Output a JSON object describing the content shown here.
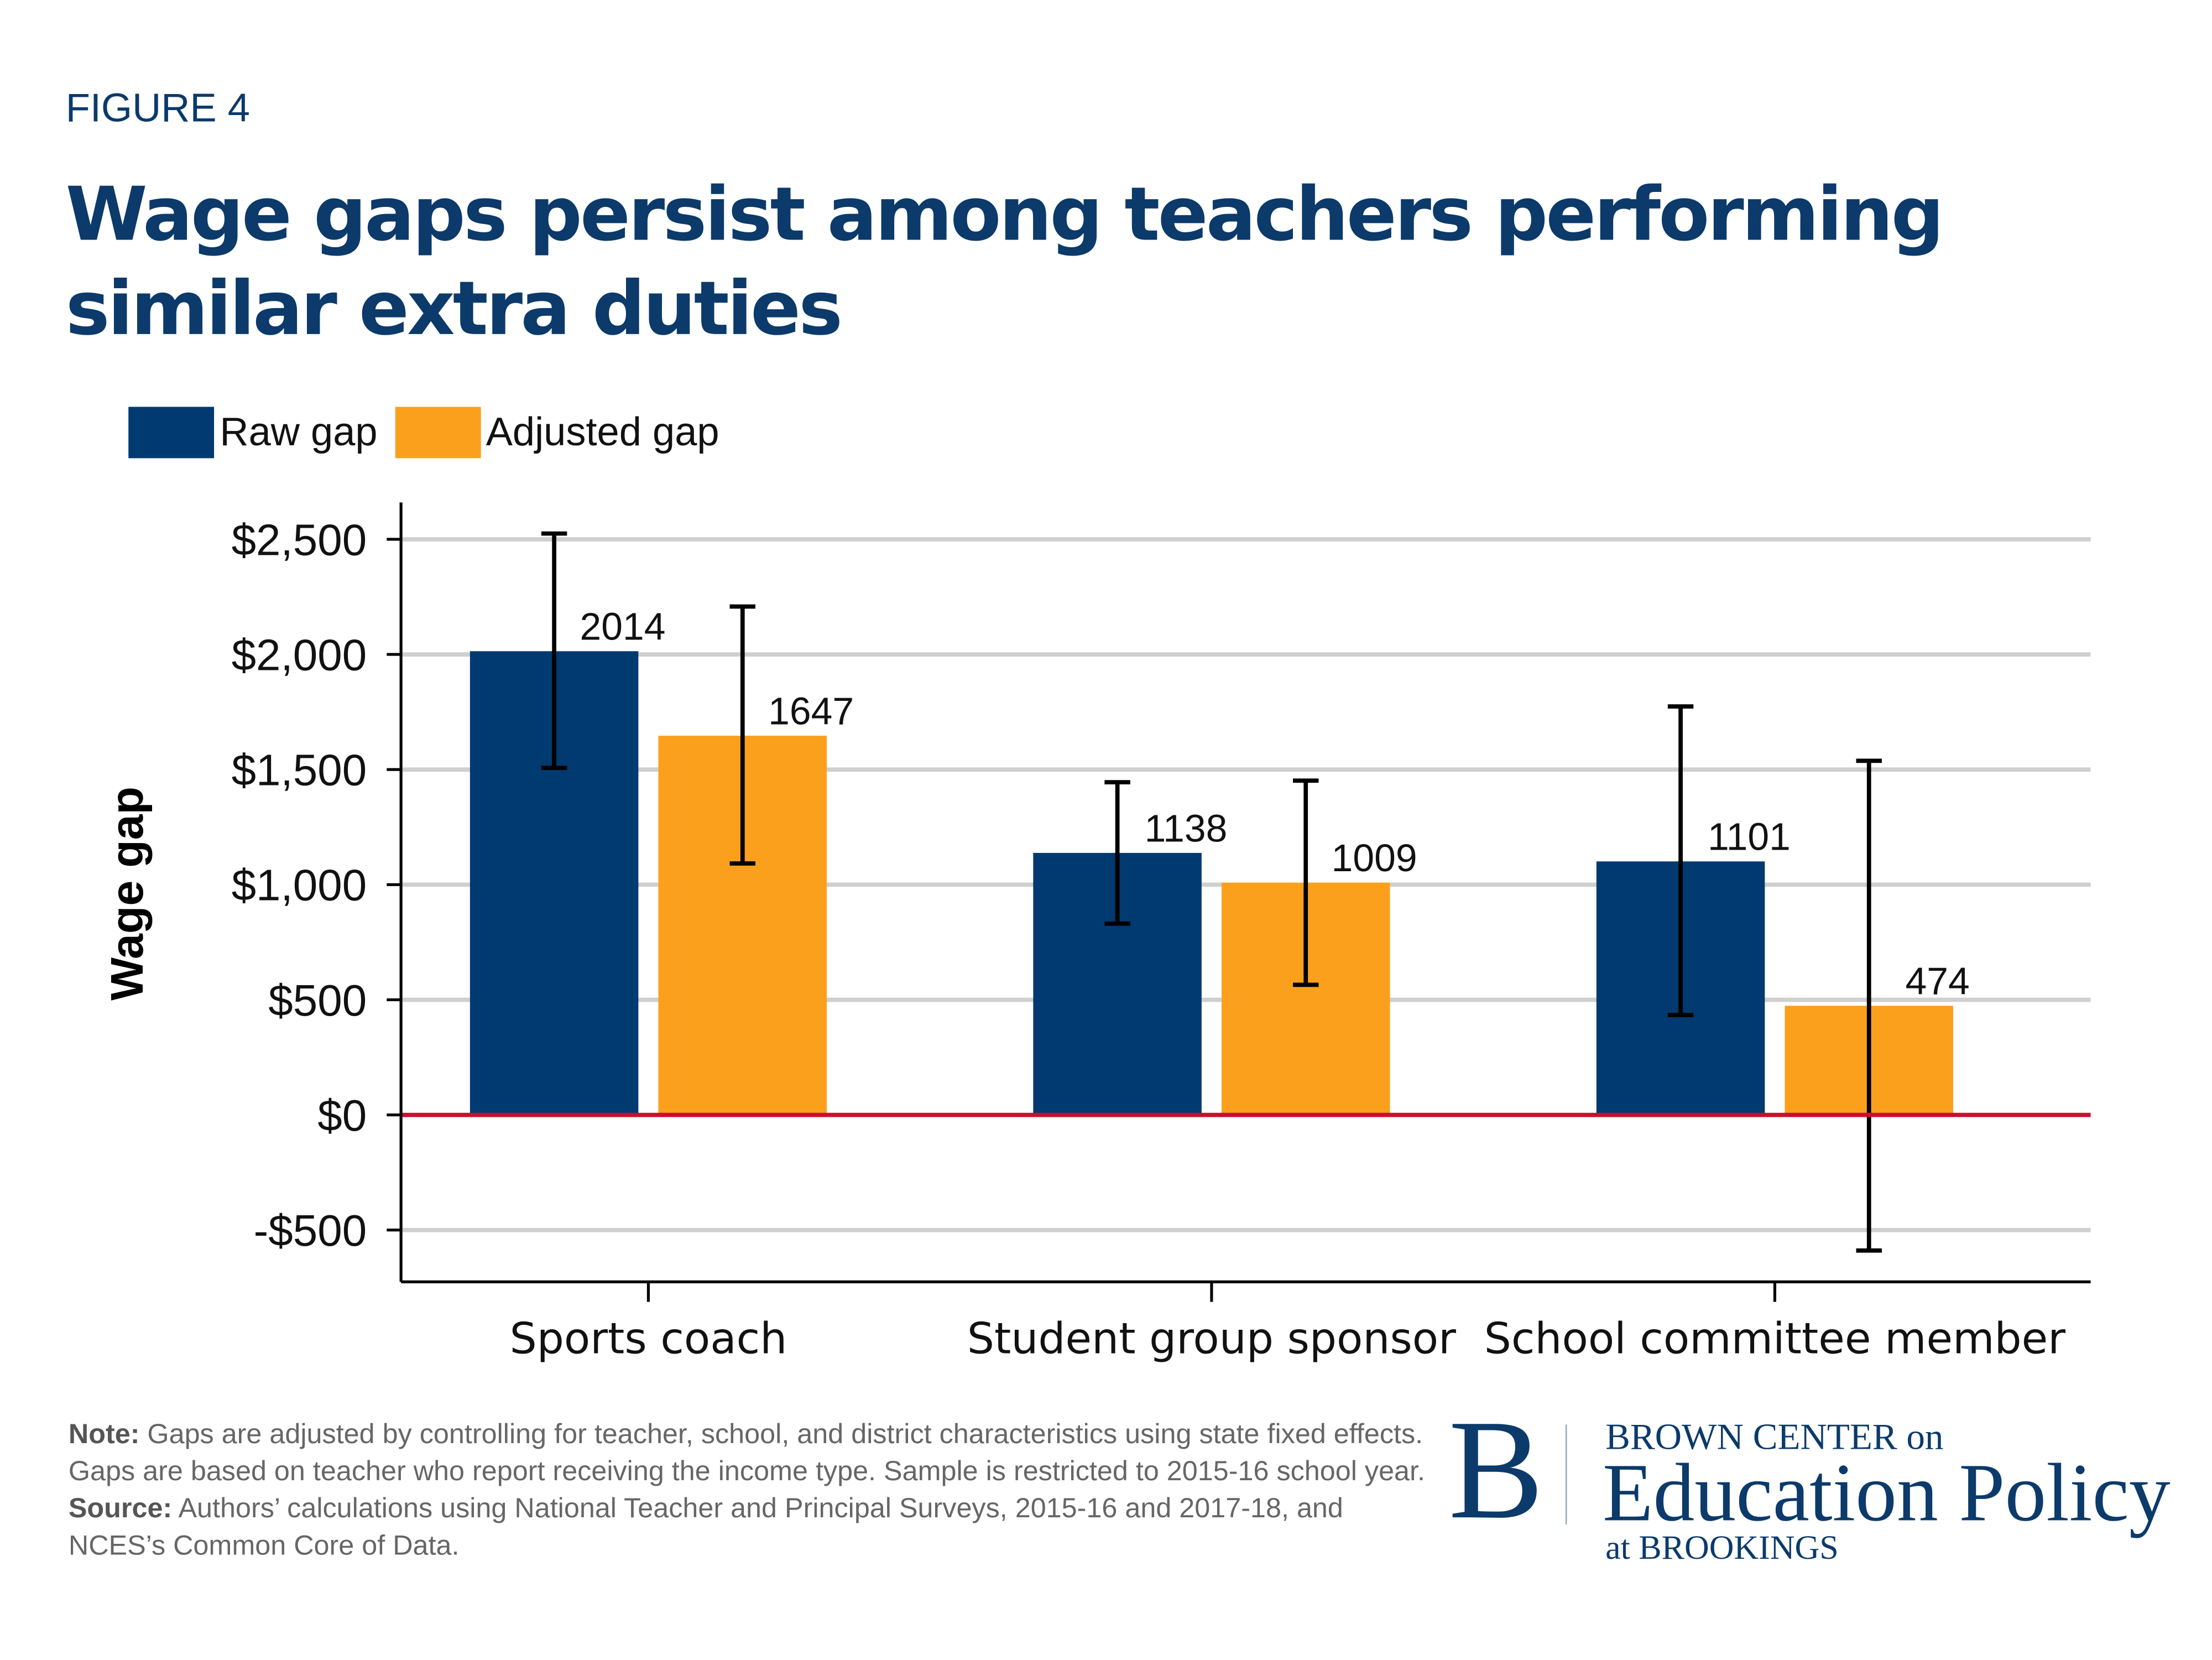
{
  "figure_label": "FIGURE 4",
  "note_label": "Note:",
  "note_text": " Gaps are adjusted by controlling for teacher, school, and district characteristics using state fixed effects. Gaps are based on teacher who report receiving the income type. Sample is restricted to 2015-16 school year.",
  "source_label": "Source:",
  "source_text": " Authors’ calculations using National Teacher and Principal Surveys, 2015-16 and 2017-18, and NCES’s Common Core of Data.",
  "logo": {
    "line1": "BROWN CENTER on",
    "line2": "Education Policy",
    "line3": "at BROOKINGS",
    "mark": "B"
  },
  "chart_data": {
    "type": "bar",
    "title": "Wage gaps persist among teachers performing similar extra duties",
    "ylabel": "Wage gap",
    "xlabel": "",
    "categories": [
      "Sports coach",
      "Student group sponsor",
      "School committee member"
    ],
    "series": [
      {
        "name": "Raw gap",
        "color": "#003a70",
        "values": [
          2014,
          1138,
          1101
        ],
        "ci_low": [
          1507,
          831,
          434
        ],
        "ci_high": [
          2525,
          1445,
          1774
        ]
      },
      {
        "name": "Adjusted gap",
        "color": "#fba01d",
        "values": [
          1647,
          1009,
          474
        ],
        "ci_low": [
          1092,
          565,
          -589
        ],
        "ci_high": [
          2208,
          1452,
          1538
        ]
      }
    ],
    "yticks": [
      -500,
      0,
      500,
      1000,
      1500,
      2000,
      2500
    ],
    "ytick_labels": [
      "-$500",
      "$0",
      "$500",
      "$1,000",
      "$1,500",
      "$2,000",
      "$2,500"
    ],
    "ylim": [
      -725,
      2660
    ],
    "grid": true,
    "zero_line_color": "#c8102e",
    "legend_position": "top-left"
  }
}
